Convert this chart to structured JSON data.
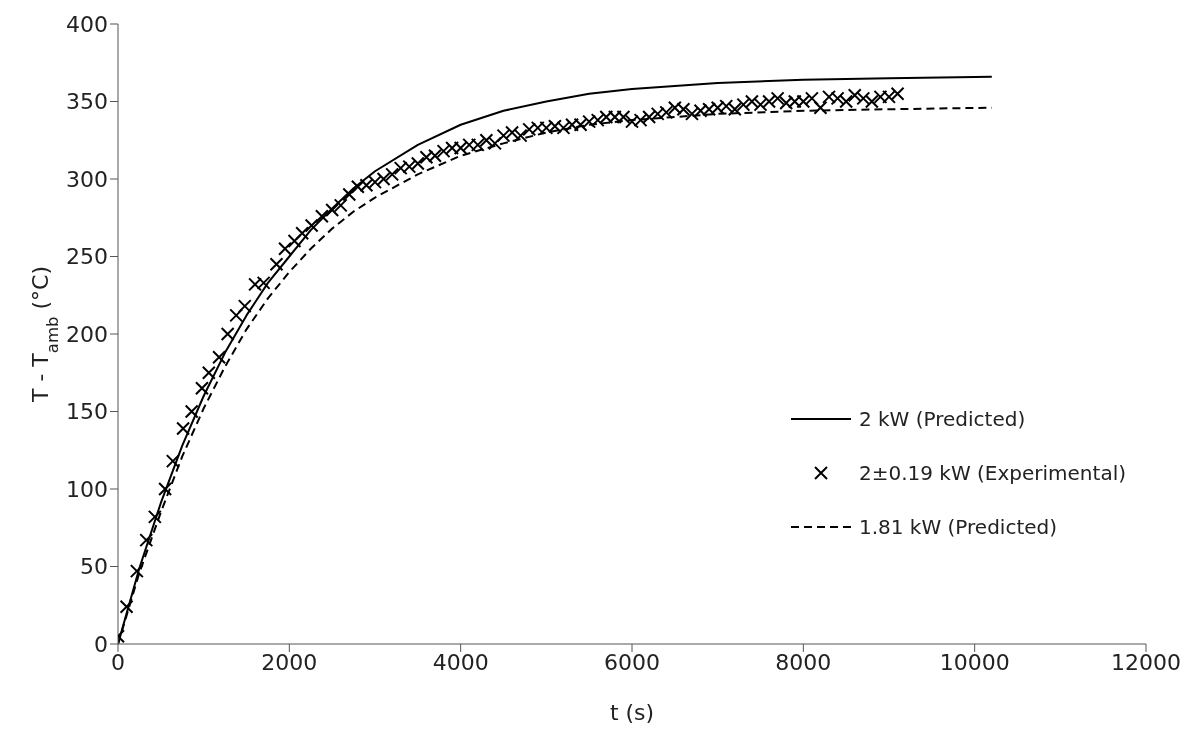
{
  "chart_data": {
    "type": "line",
    "xlabel": "t (s)",
    "ylabel": "T - T$_{amb}$ (°C)",
    "xlim": [
      0,
      12000
    ],
    "xticks": [
      0,
      2000,
      4000,
      6000,
      8000,
      10000,
      12000
    ],
    "ylim": [
      0,
      400
    ],
    "yticks": [
      0,
      50,
      100,
      150,
      200,
      250,
      300,
      350,
      400
    ],
    "legend": "bottom right",
    "series": [
      {
        "name": "2 kW (Predicted)",
        "color": "#000000",
        "line_style": "solid",
        "marker": "none",
        "x": [
          0,
          250,
          500,
          750,
          1000,
          1250,
          1500,
          1750,
          2000,
          2250,
          2500,
          2750,
          3000,
          3500,
          4000,
          4500,
          5000,
          5500,
          6000,
          7000,
          8000,
          9000,
          10200
        ],
        "values": [
          0,
          49,
          91,
          128,
          160,
          188,
          212,
          233,
          250,
          267,
          281,
          294,
          305,
          322,
          335,
          344,
          350,
          355,
          358,
          362,
          364,
          365,
          366
        ]
      },
      {
        "name": "2±0.19 kW (Experimental)",
        "type": "scatter",
        "color": "#000000",
        "marker": "cross",
        "x": [
          0,
          100,
          220,
          330,
          430,
          550,
          640,
          760,
          860,
          980,
          1060,
          1180,
          1280,
          1380,
          1480,
          1600,
          1700,
          1850,
          1950,
          2060,
          2150,
          2260,
          2380,
          2500,
          2600,
          2700,
          2800,
          2900,
          3000,
          3100,
          3200,
          3300,
          3400,
          3500,
          3600,
          3700,
          3800,
          3900,
          4000,
          4100,
          4200,
          4300,
          4400,
          4500,
          4600,
          4700,
          4800,
          4900,
          5000,
          5100,
          5200,
          5300,
          5400,
          5500,
          5600,
          5700,
          5800,
          5900,
          6000,
          6100,
          6200,
          6300,
          6400,
          6500,
          6600,
          6700,
          6800,
          6900,
          7000,
          7100,
          7200,
          7300,
          7400,
          7500,
          7600,
          7700,
          7800,
          7900,
          8000,
          8100,
          8200,
          8300,
          8400,
          8500,
          8600,
          8700,
          8800,
          8900,
          9000,
          9100
        ],
        "values": [
          5,
          24,
          47,
          67,
          82,
          100,
          118,
          139,
          150,
          165,
          175,
          185,
          200,
          212,
          218,
          232,
          233,
          245,
          255,
          260,
          265,
          270,
          276,
          280,
          283,
          290,
          295,
          296,
          298,
          300,
          303,
          307,
          308,
          310,
          314,
          315,
          318,
          320,
          320,
          322,
          322,
          325,
          323,
          328,
          330,
          328,
          332,
          333,
          333,
          334,
          333,
          335,
          335,
          337,
          338,
          340,
          340,
          340,
          337,
          338,
          340,
          342,
          343,
          346,
          345,
          342,
          344,
          345,
          346,
          347,
          345,
          348,
          350,
          348,
          350,
          352,
          349,
          350,
          350,
          352,
          346,
          353,
          352,
          350,
          354,
          352,
          350,
          353,
          353,
          355
        ]
      },
      {
        "name": "1.81 kW (Predicted)",
        "color": "#000000",
        "line_style": "dashed",
        "marker": "none",
        "x": [
          0,
          250,
          500,
          750,
          1000,
          1250,
          1500,
          1750,
          2000,
          2250,
          2500,
          2750,
          3000,
          3500,
          4000,
          4500,
          5000,
          5500,
          6000,
          7000,
          8000,
          9000,
          10200
        ],
        "values": [
          0,
          46,
          85,
          121,
          152,
          179,
          203,
          223,
          240,
          255,
          268,
          279,
          288,
          303,
          315,
          323,
          330,
          335,
          338,
          342,
          344,
          345,
          346
        ]
      }
    ]
  }
}
